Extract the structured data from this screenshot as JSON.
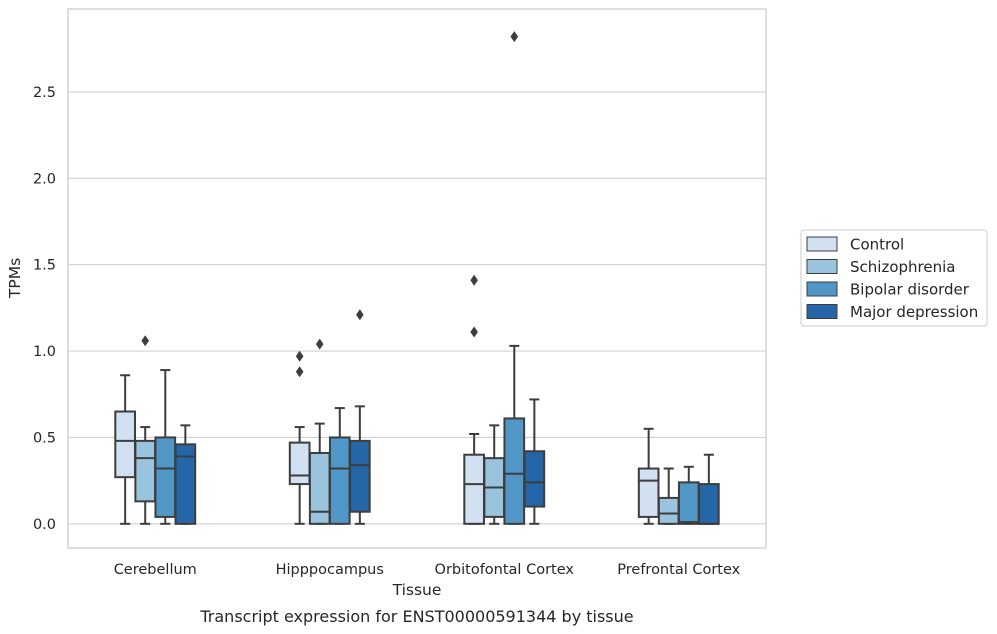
{
  "caption": "Transcript expression for ENST00000591344 by tissue",
  "chart_data": {
    "type": "box",
    "xlabel": "Tissue",
    "ylabel": "TPMs",
    "ylim": [
      -0.14,
      2.98
    ],
    "yticks": [
      0.0,
      0.5,
      1.0,
      1.5,
      2.0,
      2.5
    ],
    "ytick_labels": [
      "0.0",
      "0.5",
      "1.0",
      "1.5",
      "2.0",
      "2.5"
    ],
    "grid": "horizontal",
    "legend_position": "center-right outside",
    "categories": [
      "Cerebellum",
      "Hipppocampus",
      "Orbitofontal Cortex",
      "Prefrontal Cortex"
    ],
    "series": [
      {
        "name": "Control",
        "color": "#d2e1f1",
        "boxes": [
          {
            "whislo": 0.0,
            "q1": 0.27,
            "med": 0.48,
            "q3": 0.65,
            "whishi": 0.86,
            "fliers": []
          },
          {
            "whislo": 0.0,
            "q1": 0.23,
            "med": 0.28,
            "q3": 0.47,
            "whishi": 0.56,
            "fliers": [
              0.88,
              0.97
            ]
          },
          {
            "whislo": 0.0,
            "q1": 0.0,
            "med": 0.23,
            "q3": 0.4,
            "whishi": 0.52,
            "fliers": [
              1.11,
              1.41
            ]
          },
          {
            "whislo": 0.0,
            "q1": 0.04,
            "med": 0.25,
            "q3": 0.32,
            "whishi": 0.55,
            "fliers": []
          }
        ]
      },
      {
        "name": "Schizophrenia",
        "color": "#9ac3de",
        "boxes": [
          {
            "whislo": 0.0,
            "q1": 0.13,
            "med": 0.38,
            "q3": 0.48,
            "whishi": 0.56,
            "fliers": [
              1.06
            ]
          },
          {
            "whislo": 0.0,
            "q1": 0.0,
            "med": 0.07,
            "q3": 0.41,
            "whishi": 0.58,
            "fliers": [
              1.04
            ]
          },
          {
            "whislo": 0.0,
            "q1": 0.04,
            "med": 0.21,
            "q3": 0.38,
            "whishi": 0.57,
            "fliers": []
          },
          {
            "whislo": 0.0,
            "q1": 0.0,
            "med": 0.06,
            "q3": 0.15,
            "whishi": 0.32,
            "fliers": []
          }
        ]
      },
      {
        "name": "Bipolar disorder",
        "color": "#5097c8",
        "boxes": [
          {
            "whislo": 0.0,
            "q1": 0.04,
            "med": 0.32,
            "q3": 0.5,
            "whishi": 0.89,
            "fliers": []
          },
          {
            "whislo": 0.0,
            "q1": 0.0,
            "med": 0.32,
            "q3": 0.5,
            "whishi": 0.67,
            "fliers": []
          },
          {
            "whislo": 0.0,
            "q1": 0.0,
            "med": 0.29,
            "q3": 0.61,
            "whishi": 1.03,
            "fliers": [
              2.82
            ]
          },
          {
            "whislo": 0.0,
            "q1": 0.0,
            "med": 0.01,
            "q3": 0.24,
            "whishi": 0.33,
            "fliers": []
          }
        ]
      },
      {
        "name": "Major depression",
        "color": "#2566a8",
        "boxes": [
          {
            "whislo": 0.0,
            "q1": 0.0,
            "med": 0.39,
            "q3": 0.46,
            "whishi": 0.57,
            "fliers": []
          },
          {
            "whislo": 0.0,
            "q1": 0.07,
            "med": 0.34,
            "q3": 0.48,
            "whishi": 0.68,
            "fliers": [
              1.21
            ]
          },
          {
            "whislo": 0.0,
            "q1": 0.1,
            "med": 0.24,
            "q3": 0.42,
            "whishi": 0.72,
            "fliers": []
          },
          {
            "whislo": 0.0,
            "q1": 0.0,
            "med": 0.0,
            "q3": 0.23,
            "whishi": 0.4,
            "fliers": []
          }
        ]
      }
    ]
  }
}
